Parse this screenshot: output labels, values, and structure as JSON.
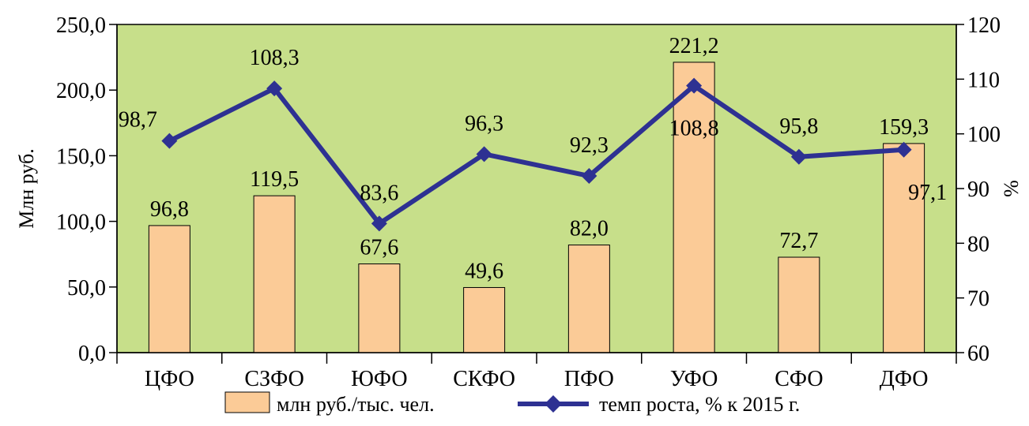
{
  "chart_data": {
    "type": "bar",
    "categories": [
      "ЦФО",
      "СЗФО",
      "ЮФО",
      "СКФО",
      "ПФО",
      "УФО",
      "СФО",
      "ДФО"
    ],
    "series": [
      {
        "name": "млн руб./тыс. чел.",
        "type": "bar",
        "axis": "left",
        "values": [
          96.8,
          119.5,
          67.6,
          49.6,
          82.0,
          221.2,
          72.7,
          159.3
        ],
        "labels": [
          "96,8",
          "119,5",
          "67,6",
          "49,6",
          "82,0",
          "221,2",
          "72,7",
          "159,3"
        ],
        "color": "#fbcb97"
      },
      {
        "name": "темп роста, % к  2015 г.",
        "type": "line",
        "axis": "right",
        "values": [
          98.7,
          108.3,
          83.6,
          96.3,
          92.3,
          108.8,
          95.8,
          97.1
        ],
        "labels": [
          "98,7",
          "108,3",
          "83,6",
          "96,3",
          "92,3",
          "108,8",
          "95,8",
          "97,1"
        ],
        "color": "#2e3192"
      }
    ],
    "ylabel": "Млн руб.",
    "y2label": "%",
    "ylim": [
      0,
      250
    ],
    "y2lim": [
      60,
      120
    ],
    "yticks": [
      "0,0",
      "50,0",
      "100,0",
      "150,0",
      "200,0",
      "250,0"
    ],
    "y2ticks": [
      "60",
      "70",
      "80",
      "90",
      "100",
      "110",
      "120"
    ],
    "plot_background": "#c7df8a",
    "grid": false,
    "legend": "bottom"
  }
}
